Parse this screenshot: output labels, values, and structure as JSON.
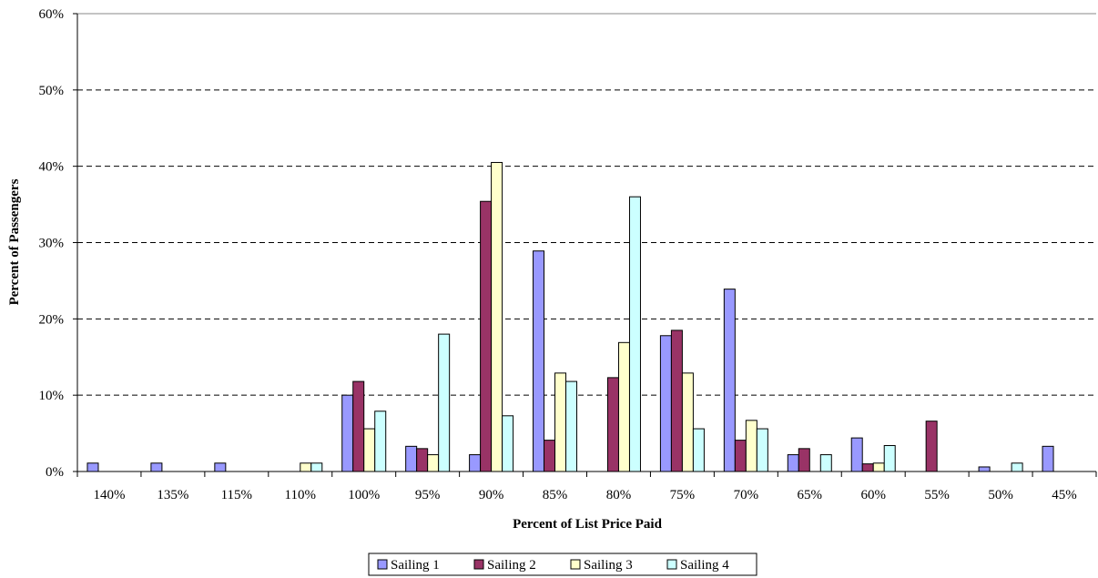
{
  "chart_data": {
    "type": "bar",
    "title": "",
    "xlabel": "Percent of List Price Paid",
    "ylabel": "Percent of Passengers",
    "ylim": [
      0,
      60
    ],
    "yticks": [
      0,
      10,
      20,
      30,
      40,
      50,
      60
    ],
    "ytick_labels": [
      "0%",
      "10%",
      "20%",
      "30%",
      "40%",
      "50%",
      "60%"
    ],
    "grid": "horizontal-dashed",
    "legend_position": "bottom",
    "categories": [
      "140%",
      "135%",
      "115%",
      "110%",
      "100%",
      "95%",
      "90%",
      "85%",
      "80%",
      "75%",
      "70%",
      "65%",
      "60%",
      "55%",
      "50%",
      "45%"
    ],
    "series": [
      {
        "name": "Sailing 1",
        "color": "#9999ff",
        "values": [
          1.1,
          1.1,
          1.1,
          0,
          10.0,
          3.3,
          2.2,
          28.9,
          0,
          17.8,
          23.9,
          2.2,
          4.4,
          0,
          0.6,
          3.3
        ]
      },
      {
        "name": "Sailing 2",
        "color": "#993366",
        "values": [
          0,
          0,
          0,
          0,
          11.8,
          3.0,
          35.4,
          4.1,
          12.3,
          18.5,
          4.1,
          3.0,
          1.0,
          6.6,
          0,
          0
        ]
      },
      {
        "name": "Sailing 3",
        "color": "#ffffcc",
        "values": [
          0,
          0,
          0,
          1.1,
          5.6,
          2.2,
          40.5,
          12.9,
          16.9,
          12.9,
          6.7,
          0,
          1.1,
          0,
          0,
          0
        ]
      },
      {
        "name": "Sailing 4",
        "color": "#ccffff",
        "values": [
          0,
          0,
          0,
          1.1,
          7.9,
          18.0,
          7.3,
          11.8,
          36.0,
          5.6,
          5.6,
          2.2,
          3.4,
          0,
          1.1,
          0
        ]
      }
    ]
  }
}
